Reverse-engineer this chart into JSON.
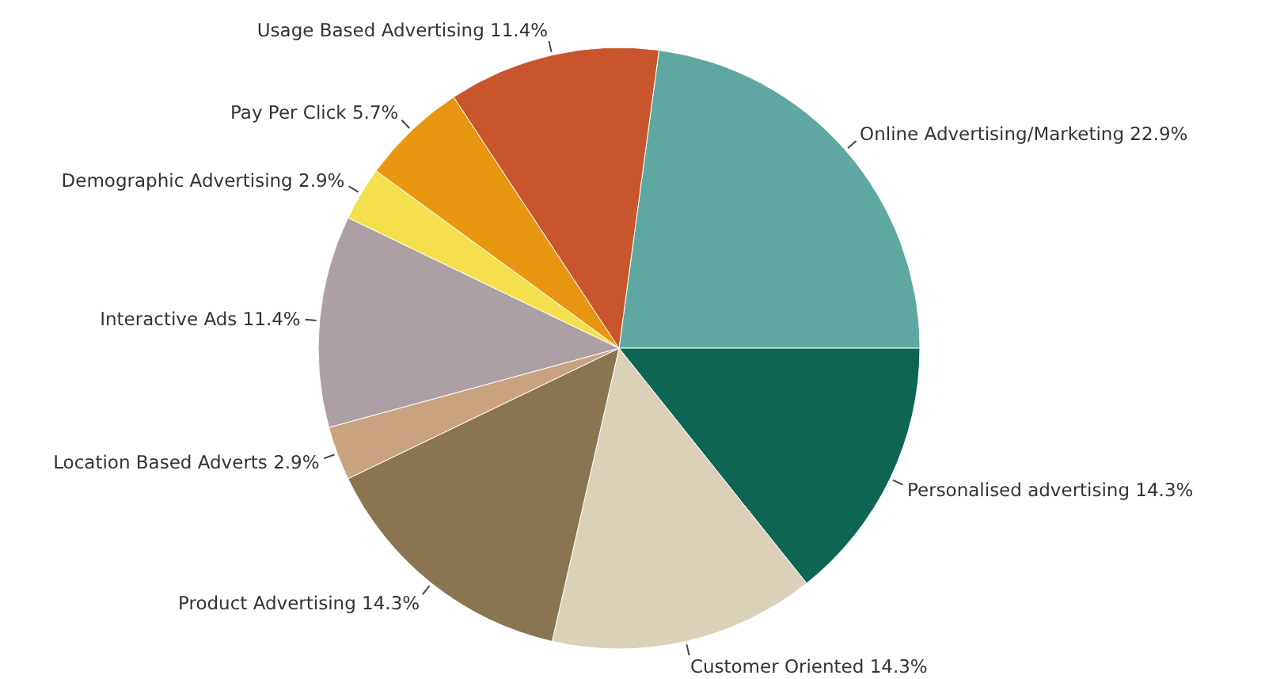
{
  "chart_data": {
    "type": "pie",
    "categories": [
      "Online Advertising/Marketing",
      "Personalised advertising",
      "Customer Oriented",
      "Product Advertising",
      "Location Based Adverts",
      "Interactive Ads",
      "Demographic Advertising",
      "Pay Per Click",
      "Usage Based Advertising"
    ],
    "values": [
      22.9,
      14.3,
      14.3,
      14.3,
      2.9,
      11.4,
      2.9,
      5.7,
      11.4
    ],
    "value_labels": [
      "22.9%",
      "14.3%",
      "14.3%",
      "14.3%",
      "2.9%",
      "11.4%",
      "2.9%",
      "5.7%",
      "11.4%"
    ],
    "colors": [
      "#5ea8a1",
      "#0d6653",
      "#dbd1b8",
      "#8a7551",
      "#c9a27f",
      "#ada0a4",
      "#f4e04c",
      "#e8960f",
      "#c9552d"
    ]
  }
}
